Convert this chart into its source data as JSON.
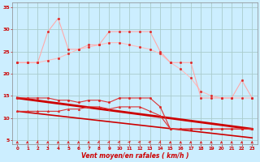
{
  "xlabel": "Vent moyen/en rafales ( km/h )",
  "bg_color": "#cceeff",
  "grid_color": "#aacccc",
  "xlim": [
    -0.5,
    23.5
  ],
  "ylim": [
    4,
    36
  ],
  "yticks": [
    5,
    10,
    15,
    20,
    25,
    30,
    35
  ],
  "xticks": [
    0,
    1,
    2,
    3,
    4,
    5,
    6,
    7,
    8,
    9,
    10,
    11,
    12,
    13,
    14,
    15,
    16,
    17,
    18,
    19,
    20,
    21,
    22,
    23
  ],
  "line1_x": [
    0,
    1,
    2,
    3,
    4,
    5,
    6,
    7,
    8,
    9,
    10,
    11,
    12,
    13,
    14,
    15,
    16,
    17,
    18,
    19,
    20,
    21,
    22,
    23
  ],
  "line1_y": [
    22.5,
    22.5,
    22.5,
    29.5,
    32.5,
    25.5,
    25.5,
    26.5,
    26.5,
    29.5,
    29.5,
    29.5,
    29.5,
    29.5,
    25.0,
    22.5,
    22.5,
    22.5,
    14.5,
    14.5,
    14.5,
    14.5,
    18.5,
    14.5
  ],
  "line1_color": "#ffaaaa",
  "line1_lw": 0.8,
  "line2_x": [
    0,
    1,
    2,
    3,
    4,
    5,
    6,
    7,
    8,
    9,
    10,
    11,
    12,
    13,
    14,
    15,
    16,
    17,
    18,
    19,
    20,
    21,
    22,
    23
  ],
  "line2_y": [
    22.5,
    22.5,
    22.5,
    23.0,
    23.5,
    24.5,
    25.5,
    26.0,
    26.5,
    27.0,
    27.0,
    26.5,
    26.0,
    25.5,
    24.5,
    22.5,
    21.0,
    19.0,
    16.0,
    15.0,
    14.5,
    14.5,
    14.5,
    14.5
  ],
  "line2_color": "#ffbbbb",
  "line2_lw": 0.8,
  "line3_x": [
    0,
    1,
    2,
    3,
    4,
    5,
    6,
    7,
    8,
    9,
    10,
    11,
    12,
    13,
    14,
    15,
    16,
    17,
    18,
    19,
    20,
    21,
    22,
    23
  ],
  "line3_y": [
    14.5,
    14.5,
    14.5,
    14.5,
    14.0,
    14.0,
    13.5,
    14.0,
    14.0,
    13.5,
    14.5,
    14.5,
    14.5,
    14.5,
    12.5,
    7.5,
    7.5,
    7.5,
    7.5,
    7.5,
    7.5,
    7.5,
    7.5,
    7.5
  ],
  "line3_color": "#dd3333",
  "line3_lw": 0.8,
  "line4_x": [
    0,
    1,
    2,
    3,
    4,
    5,
    6,
    7,
    8,
    9,
    10,
    11,
    12,
    13,
    14,
    15,
    16,
    17,
    18,
    19,
    20,
    21,
    22,
    23
  ],
  "line4_y": [
    11.5,
    11.5,
    11.5,
    11.5,
    11.5,
    12.0,
    12.0,
    12.5,
    12.5,
    12.0,
    12.5,
    12.5,
    12.5,
    11.5,
    10.5,
    7.5,
    7.5,
    7.5,
    7.5,
    7.5,
    7.5,
    7.5,
    7.5,
    7.5
  ],
  "line4_color": "#dd3333",
  "line4_lw": 0.8,
  "trend1_x": [
    0,
    23
  ],
  "trend1_y": [
    14.5,
    7.5
  ],
  "trend1_color": "#cc0000",
  "trend1_lw": 2.0,
  "trend2_x": [
    0,
    23
  ],
  "trend2_y": [
    11.5,
    5.5
  ],
  "trend2_color": "#cc0000",
  "trend2_lw": 1.2,
  "marker_color": "#dd2222",
  "marker_size": 1.8,
  "arrow_angles_deg": [
    90,
    85,
    80,
    85,
    90,
    90,
    90,
    85,
    75,
    70,
    65,
    60,
    60,
    60,
    80,
    85,
    90,
    85,
    90,
    90,
    90,
    90,
    85,
    90
  ]
}
